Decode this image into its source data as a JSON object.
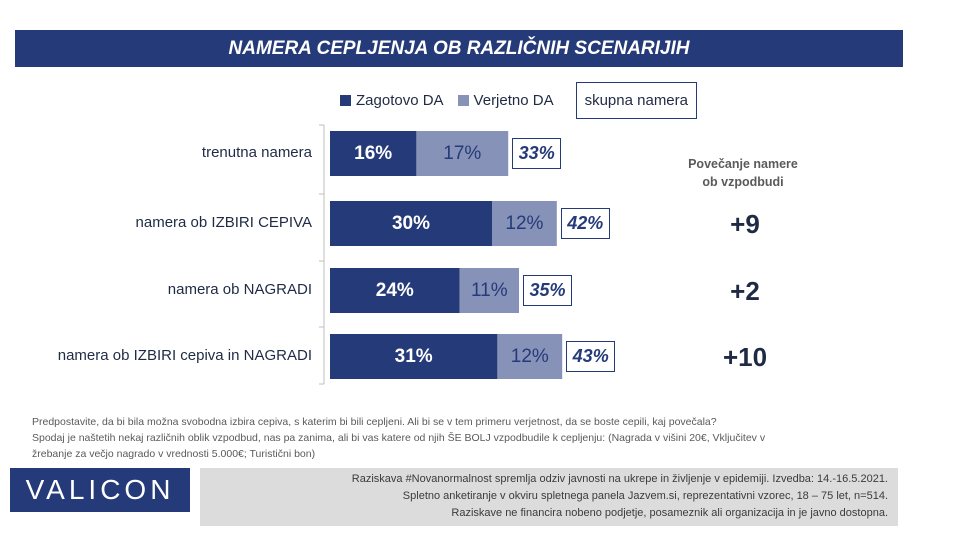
{
  "title": "NAMERA CEPLJENJA OB RAZLIČNIH SCENARIJIH",
  "legend": {
    "definitely": "Zagotovo DA",
    "probably": "Verjetno DA",
    "total": "skupna namera"
  },
  "colors": {
    "definitely": "#253a78",
    "probably": "#8692b8",
    "header": "#253a78"
  },
  "increase_header_line1": "Povečanje namere",
  "increase_header_line2": "ob vzpodbudi",
  "chart_data": {
    "type": "bar",
    "orientation": "horizontal",
    "stacked": true,
    "categories": [
      "trenutna namera",
      "namera ob IZBIRI CEPIVA",
      "namera ob NAGRADI",
      "namera ob IZBIRI cepiva in NAGRADI"
    ],
    "series": [
      {
        "name": "Zagotovo DA",
        "values": [
          16,
          30,
          24,
          31
        ],
        "labels": [
          "16%",
          "30%",
          "24%",
          "31%"
        ]
      },
      {
        "name": "Verjetno DA",
        "values": [
          17,
          12,
          11,
          12
        ],
        "labels": [
          "17%",
          "12%",
          "11%",
          "12%"
        ]
      }
    ],
    "totals_name": "skupna namera",
    "totals": [
      33,
      42,
      35,
      43
    ],
    "total_labels": [
      "33%",
      "42%",
      "35%",
      "43%"
    ],
    "increase": [
      "",
      "+9",
      "+2",
      "+10"
    ],
    "unit": "%"
  },
  "footnote": {
    "line1": "Predpostavite, da bi bila možna svobodna izbira cepiva, s katerim bi bili cepljeni.  Ali bi se v tem primeru verjetnost,  da se boste cepili, kaj povečala?",
    "line2": "Spodaj je naštetih nekaj različnih oblik vzpodbud, nas pa zanima, ali bi vas katere od njih ŠE BOLJ vzpodbudile k cepljenju: (Nagrada v višini 20€, Vključitev v",
    "line3": "žrebanje za večjo nagrado v vrednosti 5.000€; Turistični bon)"
  },
  "logo": "VALICON",
  "info": {
    "line1": "Raziskava #Novanormalnost spremlja odziv javnosti na ukrepe in življenje v epidemiji. Izvedba: 14.-16.5.2021.",
    "line2": "Spletno anketiranje v okviru spletnega panela Jazvem.si, reprezentativni vzorec, 18 – 75 let, n=514.",
    "line3": "Raziskave ne financira nobeno podjetje, posameznik ali organizacija in je javno dostopna."
  }
}
